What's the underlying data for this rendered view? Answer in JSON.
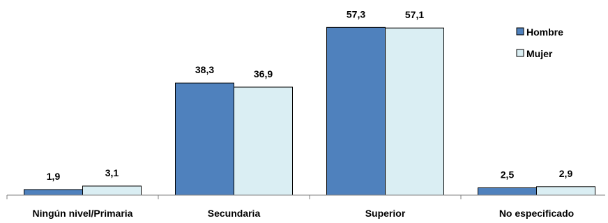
{
  "chart_data": {
    "type": "bar",
    "categories": [
      "Ningún nivel/Primaria",
      "Secundaria",
      "Superior",
      "No especificado"
    ],
    "series": [
      {
        "name": "Hombre",
        "values": [
          1.9,
          38.3,
          57.3,
          2.5
        ],
        "labels": [
          "1,9",
          "38,3",
          "57,3",
          "2,5"
        ],
        "color": "#4f81bd"
      },
      {
        "name": "Mujer",
        "values": [
          3.1,
          36.9,
          57.1,
          2.9
        ],
        "labels": [
          "3,1",
          "36,9",
          "57,1",
          "2,9"
        ],
        "color": "#daeef3"
      }
    ],
    "ylim": [
      0,
      60
    ],
    "grid": false,
    "legend_position": "top-right",
    "bar_stroke": "#000000"
  }
}
